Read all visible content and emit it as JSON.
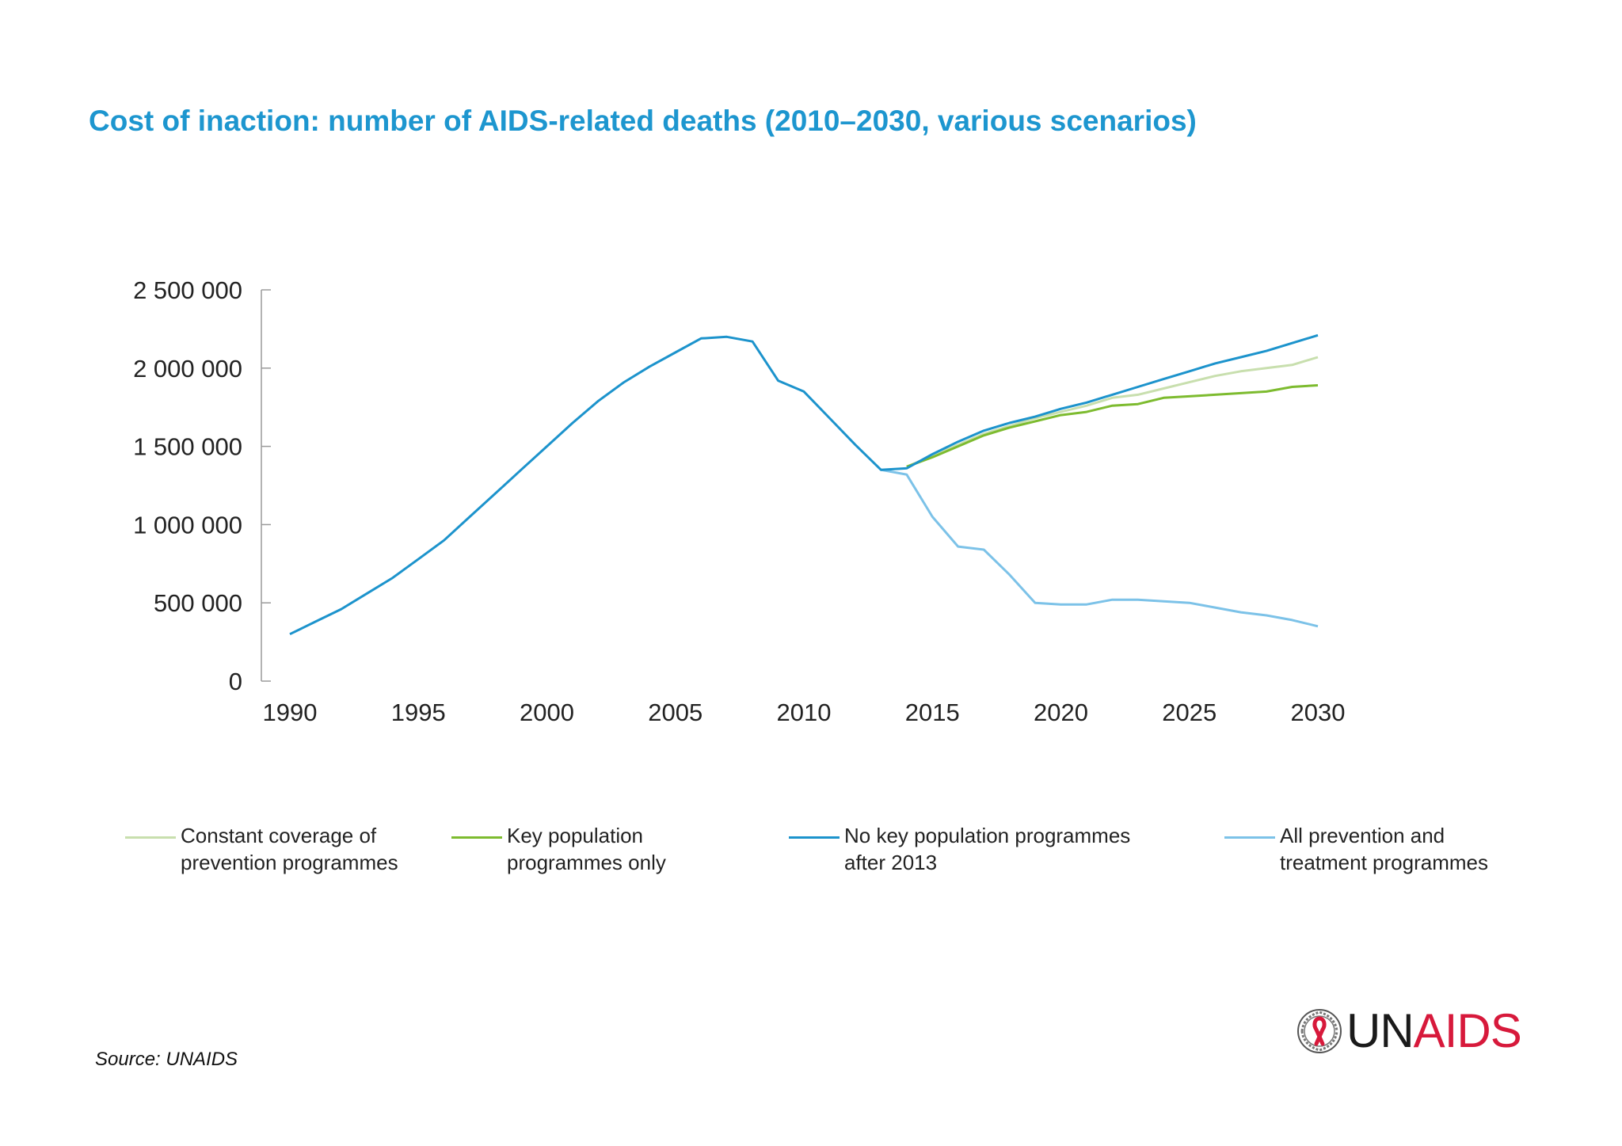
{
  "title": "Cost of inaction: number of AIDS-related deaths (2010–2030, various scenarios)",
  "source": "Source: UNAIDS",
  "logo": {
    "text_un": "UN",
    "text_aids": "AIDS"
  },
  "colors": {
    "title": "#1d96cf",
    "constant": "#c8dfae",
    "key_pop": "#7dbb2f",
    "no_key_pop": "#1c93cc",
    "all_prevention": "#7cc2e8",
    "logo_red": "#d7193b"
  },
  "chart_data": {
    "type": "line",
    "title": "Cost of inaction: number of AIDS-related deaths (2010–2030, various scenarios)",
    "xlabel": "",
    "ylabel": "",
    "xlim": [
      1990,
      2030
    ],
    "ylim": [
      0,
      2500000
    ],
    "xticks": [
      1990,
      1995,
      2000,
      2005,
      2010,
      2015,
      2020,
      2025,
      2030
    ],
    "xtick_labels": [
      "1990",
      "1995",
      "2000",
      "2005",
      "2010",
      "2015",
      "2020",
      "2025",
      "2030"
    ],
    "yticks": [
      0,
      500000,
      1000000,
      1500000,
      2000000,
      2500000
    ],
    "ytick_labels": [
      "0",
      "500 000",
      "1 000 000",
      "1 500 000",
      "2 000 000",
      "2 500 000"
    ],
    "grid": false,
    "legend_position": "bottom",
    "series": [
      {
        "name": "Constant coverage of\nprevention programmes",
        "color_key": "constant",
        "x": [
          2014,
          2015,
          2016,
          2017,
          2018,
          2019,
          2020,
          2021,
          2022,
          2023,
          2024,
          2025,
          2026,
          2027,
          2028,
          2029,
          2030
        ],
        "y": [
          1370000,
          1440000,
          1510000,
          1580000,
          1630000,
          1680000,
          1720000,
          1760000,
          1810000,
          1830000,
          1870000,
          1910000,
          1950000,
          1980000,
          2000000,
          2020000,
          2070000
        ]
      },
      {
        "name": "Key population\nprogrammes only",
        "color_key": "key_pop",
        "x": [
          2014,
          2015,
          2016,
          2017,
          2018,
          2019,
          2020,
          2021,
          2022,
          2023,
          2024,
          2025,
          2026,
          2027,
          2028,
          2029,
          2030
        ],
        "y": [
          1370000,
          1430000,
          1500000,
          1570000,
          1620000,
          1660000,
          1700000,
          1720000,
          1760000,
          1770000,
          1810000,
          1820000,
          1830000,
          1840000,
          1850000,
          1880000,
          1890000
        ]
      },
      {
        "name": "No key population programmes\nafter 2013",
        "color_key": "no_key_pop",
        "x": [
          1990,
          1991,
          1992,
          1993,
          1994,
          1995,
          1996,
          1997,
          1998,
          1999,
          2000,
          2001,
          2002,
          2003,
          2004,
          2005,
          2006,
          2007,
          2008,
          2009,
          2010,
          2011,
          2012,
          2013,
          2014,
          2015,
          2016,
          2017,
          2018,
          2019,
          2020,
          2021,
          2022,
          2023,
          2024,
          2025,
          2026,
          2027,
          2028,
          2029,
          2030
        ],
        "y": [
          300000,
          380000,
          460000,
          560000,
          660000,
          780000,
          900000,
          1050000,
          1200000,
          1350000,
          1500000,
          1650000,
          1790000,
          1910000,
          2010000,
          2100000,
          2190000,
          2200000,
          2170000,
          1920000,
          1850000,
          1680000,
          1510000,
          1350000,
          1360000,
          1450000,
          1530000,
          1600000,
          1650000,
          1690000,
          1740000,
          1780000,
          1830000,
          1880000,
          1930000,
          1980000,
          2030000,
          2070000,
          2110000,
          2160000,
          2210000
        ]
      },
      {
        "name": "All prevention and\ntreatment programmes",
        "color_key": "all_prevention",
        "x": [
          2013,
          2014,
          2015,
          2016,
          2017,
          2018,
          2019,
          2020,
          2021,
          2022,
          2023,
          2024,
          2025,
          2026,
          2027,
          2028,
          2029,
          2030
        ],
        "y": [
          1350000,
          1320000,
          1050000,
          860000,
          840000,
          680000,
          500000,
          490000,
          490000,
          520000,
          520000,
          510000,
          500000,
          470000,
          440000,
          420000,
          390000,
          350000
        ]
      }
    ]
  }
}
